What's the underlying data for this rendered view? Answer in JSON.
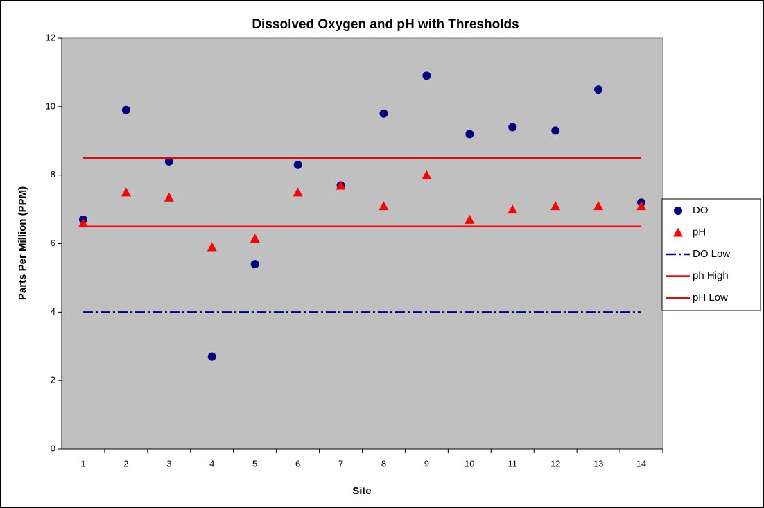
{
  "chart_data": {
    "type": "line",
    "title": "Dissolved Oxygen and pH with Thresholds",
    "x_label": "Site",
    "y_label": "Parts Per Million (PPM)",
    "categories": [
      "1",
      "2",
      "3",
      "4",
      "5",
      "6",
      "7",
      "8",
      "9",
      "10",
      "11",
      "12",
      "13",
      "14"
    ],
    "series": [
      {
        "name": "DO",
        "color": "#000080",
        "marker": "circle",
        "line": "none",
        "values": [
          6.7,
          9.9,
          8.4,
          2.7,
          5.4,
          8.3,
          7.7,
          9.8,
          10.9,
          9.2,
          9.4,
          9.3,
          10.5,
          7.2
        ]
      },
      {
        "name": "pH",
        "color": "#ff0000",
        "marker": "triangle",
        "line": "none",
        "values": [
          6.6,
          7.5,
          7.35,
          5.9,
          6.15,
          7.5,
          7.7,
          7.1,
          8.0,
          6.7,
          7.0,
          7.1,
          7.1,
          7.1
        ]
      },
      {
        "name": "DO Low",
        "color": "#000080",
        "marker": "none",
        "line": "dashdot",
        "values": [
          4,
          4,
          4,
          4,
          4,
          4,
          4,
          4,
          4,
          4,
          4,
          4,
          4,
          4
        ]
      },
      {
        "name": "ph High",
        "color": "#ff0000",
        "marker": "none",
        "line": "solid",
        "values": [
          8.5,
          8.5,
          8.5,
          8.5,
          8.5,
          8.5,
          8.5,
          8.5,
          8.5,
          8.5,
          8.5,
          8.5,
          8.5,
          8.5
        ]
      },
      {
        "name": "pH Low",
        "color": "#ff0000",
        "marker": "none",
        "line": "solid",
        "values": [
          6.5,
          6.5,
          6.5,
          6.5,
          6.5,
          6.5,
          6.5,
          6.5,
          6.5,
          6.5,
          6.5,
          6.5,
          6.5,
          6.5
        ]
      }
    ],
    "ylim": [
      0,
      12
    ],
    "yticks": [
      0,
      2,
      4,
      6,
      8,
      10,
      12
    ],
    "plot_background": "#c0c0c0",
    "legend": "right"
  }
}
